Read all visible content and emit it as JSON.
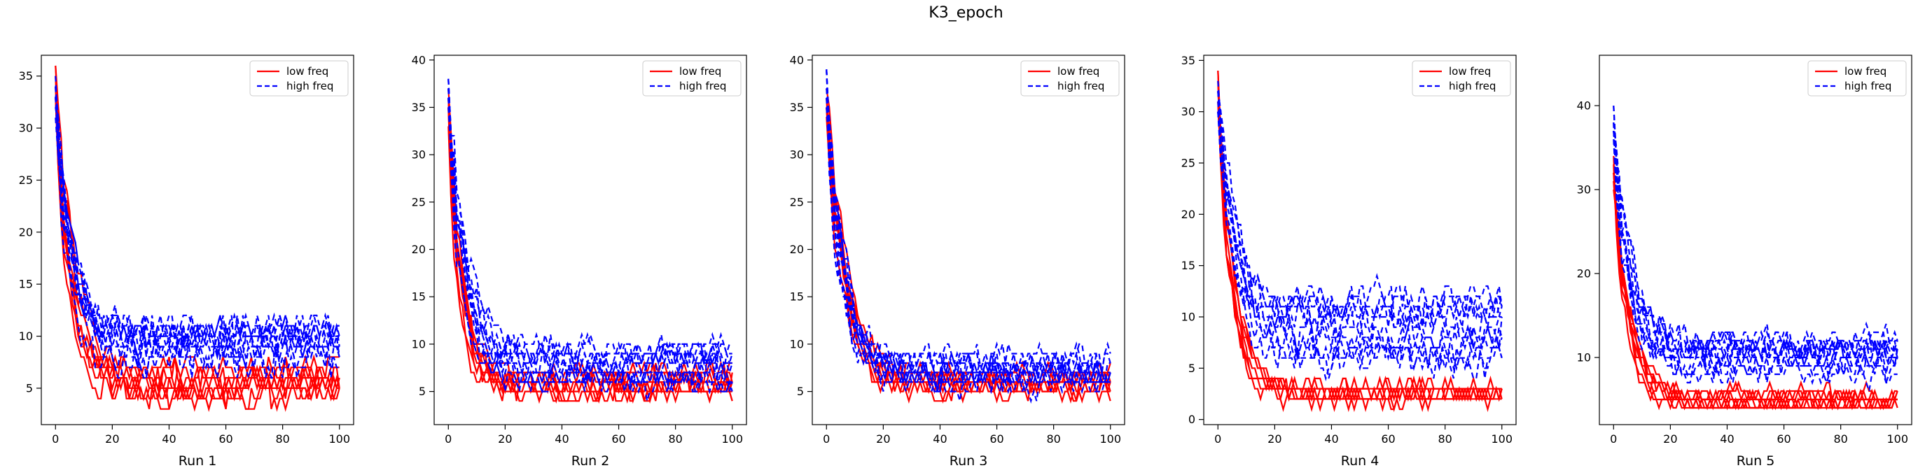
{
  "figure": {
    "title": "K3_epoch"
  },
  "colors": {
    "low": "#ff0000",
    "high": "#0000ff",
    "axis": "#000000"
  },
  "chart_data": [
    {
      "type": "line",
      "xlabel": "Run 1",
      "xlim": [
        -5,
        105
      ],
      "ylim": [
        1.5,
        37
      ],
      "xticks": [
        0,
        20,
        40,
        60,
        80,
        100
      ],
      "yticks": [
        5,
        10,
        15,
        20,
        25,
        30,
        35
      ],
      "legend": "top-right",
      "series": [
        {
          "name": "low freq",
          "style": "solid",
          "color": "#ff0000",
          "count": 8,
          "start": 35,
          "floor": 5.5,
          "decay": 5,
          "noise": 2.0,
          "spread": 1.2
        },
        {
          "name": "high freq",
          "style": "dashed",
          "color": "#0000ff",
          "count": 10,
          "start": 33,
          "floor": 9,
          "decay": 5,
          "noise": 2.5,
          "spread": 2.0
        }
      ]
    },
    {
      "type": "line",
      "xlabel": "Run 2",
      "xlim": [
        -5,
        105
      ],
      "ylim": [
        1.5,
        40.5
      ],
      "xticks": [
        0,
        20,
        40,
        60,
        80,
        100
      ],
      "yticks": [
        5,
        10,
        15,
        20,
        25,
        30,
        35,
        40
      ],
      "legend": "top-right",
      "series": [
        {
          "name": "low freq",
          "style": "solid",
          "color": "#ff0000",
          "count": 8,
          "start": 35,
          "floor": 6,
          "decay": 4,
          "noise": 1.8,
          "spread": 1.0
        },
        {
          "name": "high freq",
          "style": "dashed",
          "color": "#0000ff",
          "count": 10,
          "start": 37,
          "floor": 8,
          "decay": 5,
          "noise": 2.3,
          "spread": 1.8
        }
      ]
    },
    {
      "type": "line",
      "xlabel": "Run 3",
      "xlim": [
        -5,
        105
      ],
      "ylim": [
        1.5,
        40.5
      ],
      "xticks": [
        0,
        20,
        40,
        60,
        80,
        100
      ],
      "yticks": [
        5,
        10,
        15,
        20,
        25,
        30,
        35,
        40
      ],
      "legend": "top-right",
      "series": [
        {
          "name": "low freq",
          "style": "solid",
          "color": "#ff0000",
          "count": 8,
          "start": 36,
          "floor": 6,
          "decay": 6,
          "noise": 1.8,
          "spread": 1.0
        },
        {
          "name": "high freq",
          "style": "dashed",
          "color": "#0000ff",
          "count": 10,
          "start": 37,
          "floor": 7,
          "decay": 5,
          "noise": 2.2,
          "spread": 1.6
        }
      ]
    },
    {
      "type": "line",
      "xlabel": "Run 4",
      "xlim": [
        -5,
        105
      ],
      "ylim": [
        -0.5,
        35.5
      ],
      "xticks": [
        0,
        20,
        40,
        60,
        80,
        100
      ],
      "yticks": [
        0,
        5,
        10,
        15,
        20,
        25,
        30,
        35
      ],
      "legend": "top-right",
      "series": [
        {
          "name": "low freq",
          "style": "solid",
          "color": "#ff0000",
          "count": 8,
          "start": 32,
          "floor": 2.5,
          "decay": 5,
          "noise": 1.2,
          "spread": 0.8
        },
        {
          "name": "high freq",
          "style": "dashed",
          "color": "#0000ff",
          "count": 10,
          "start": 32,
          "floor": 9,
          "decay": 5,
          "noise": 2.5,
          "spread": 3.2
        }
      ]
    },
    {
      "type": "line",
      "xlabel": "Run 5",
      "xlim": [
        -5,
        105
      ],
      "ylim": [
        2,
        46
      ],
      "xticks": [
        0,
        20,
        40,
        60,
        80,
        100
      ],
      "yticks": [
        10,
        20,
        30,
        40
      ],
      "legend": "top-right",
      "series": [
        {
          "name": "low freq",
          "style": "solid",
          "color": "#ff0000",
          "count": 8,
          "start": 32,
          "floor": 5,
          "decay": 5,
          "noise": 1.6,
          "spread": 1.0
        },
        {
          "name": "high freq",
          "style": "dashed",
          "color": "#0000ff",
          "count": 10,
          "start": 38,
          "floor": 10,
          "decay": 5,
          "noise": 2.5,
          "spread": 2.0
        }
      ]
    }
  ]
}
